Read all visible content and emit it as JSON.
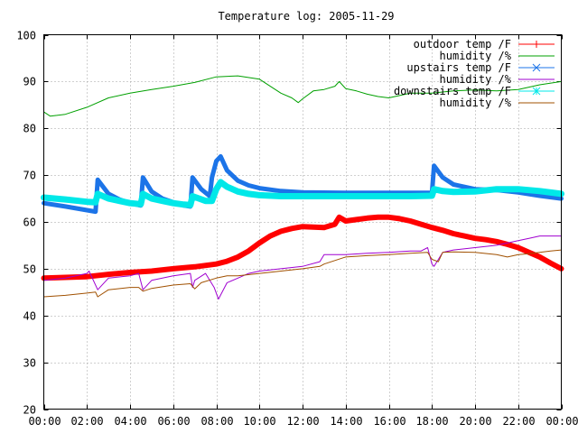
{
  "chart_data": {
    "type": "line",
    "title": "Temperature log: 2005-11-29",
    "xlabel": "",
    "ylabel": "",
    "xlim": [
      0,
      24
    ],
    "ylim": [
      20,
      100
    ],
    "grid": true,
    "legend_position": "top-right",
    "x_tick_labels": [
      "00:00",
      "02:00",
      "04:00",
      "06:00",
      "08:00",
      "10:00",
      "12:00",
      "14:00",
      "16:00",
      "18:00",
      "20:00",
      "22:00",
      "00:00"
    ],
    "y_tick_labels": [
      "20",
      "30",
      "40",
      "50",
      "60",
      "70",
      "80",
      "90",
      "100"
    ],
    "series": [
      {
        "name": "outdoor temp /F",
        "color": "#ff0000",
        "marker": "plus",
        "points": [
          [
            0,
            48
          ],
          [
            2,
            48.3
          ],
          [
            3,
            48.8
          ],
          [
            4,
            49.2
          ],
          [
            5,
            49.5
          ],
          [
            6,
            50
          ],
          [
            7,
            50.4
          ],
          [
            8,
            51
          ],
          [
            8.5,
            51.6
          ],
          [
            9,
            52.5
          ],
          [
            9.5,
            53.8
          ],
          [
            10,
            55.5
          ],
          [
            10.5,
            57
          ],
          [
            11,
            58
          ],
          [
            11.5,
            58.6
          ],
          [
            12,
            59
          ],
          [
            12.5,
            58.9
          ],
          [
            13,
            58.8
          ],
          [
            13.5,
            59.5
          ],
          [
            13.7,
            61
          ],
          [
            14,
            60.2
          ],
          [
            14.5,
            60.5
          ],
          [
            15,
            60.8
          ],
          [
            15.5,
            61
          ],
          [
            16,
            61
          ],
          [
            16.5,
            60.7
          ],
          [
            17,
            60.2
          ],
          [
            17.5,
            59.5
          ],
          [
            18,
            58.8
          ],
          [
            18.5,
            58.2
          ],
          [
            19,
            57.5
          ],
          [
            19.5,
            57
          ],
          [
            20,
            56.5
          ],
          [
            20.5,
            56.2
          ],
          [
            21,
            55.8
          ],
          [
            21.5,
            55.2
          ],
          [
            22,
            54.5
          ],
          [
            22.5,
            53.5
          ],
          [
            23,
            52.5
          ],
          [
            23.5,
            51.2
          ],
          [
            24,
            50
          ]
        ]
      },
      {
        "name": "humidity /%",
        "color": "#00a000",
        "marker": "none",
        "points": [
          [
            0,
            83.5
          ],
          [
            0.3,
            82.6
          ],
          [
            1,
            83
          ],
          [
            2,
            84.5
          ],
          [
            3,
            86.5
          ],
          [
            4,
            87.5
          ],
          [
            5,
            88.3
          ],
          [
            6,
            89
          ],
          [
            7,
            89.8
          ],
          [
            8,
            91
          ],
          [
            9,
            91.2
          ],
          [
            10,
            90.5
          ],
          [
            10.5,
            89
          ],
          [
            11,
            87.5
          ],
          [
            11.5,
            86.5
          ],
          [
            11.8,
            85.5
          ],
          [
            12,
            86.3
          ],
          [
            12.5,
            88
          ],
          [
            13,
            88.3
          ],
          [
            13.5,
            89
          ],
          [
            13.7,
            90
          ],
          [
            14,
            88.5
          ],
          [
            14.5,
            88
          ],
          [
            15,
            87.3
          ],
          [
            15.5,
            86.8
          ],
          [
            16,
            86.5
          ],
          [
            17,
            87.5
          ],
          [
            18,
            87.5
          ],
          [
            19,
            88
          ],
          [
            20,
            88.2
          ],
          [
            21,
            88
          ],
          [
            22,
            88.3
          ],
          [
            23,
            89.3
          ],
          [
            24,
            90
          ]
        ]
      },
      {
        "name": "upstairs temp /F",
        "color": "#1c74e8",
        "marker": "cross",
        "points": [
          [
            0,
            64
          ],
          [
            1,
            63.3
          ],
          [
            2,
            62.5
          ],
          [
            2.4,
            62.2
          ],
          [
            2.5,
            69
          ],
          [
            3,
            66
          ],
          [
            3.5,
            64.8
          ],
          [
            4,
            64
          ],
          [
            4.5,
            63.5
          ],
          [
            4.6,
            69.5
          ],
          [
            5,
            66.5
          ],
          [
            5.5,
            65
          ],
          [
            6,
            64.2
          ],
          [
            6.5,
            63.5
          ],
          [
            6.8,
            63.3
          ],
          [
            6.9,
            69.5
          ],
          [
            7.3,
            67
          ],
          [
            7.7,
            65.5
          ],
          [
            7.8,
            69.5
          ],
          [
            8,
            73
          ],
          [
            8.2,
            74
          ],
          [
            8.5,
            71
          ],
          [
            9,
            68.8
          ],
          [
            9.5,
            67.8
          ],
          [
            10,
            67.2
          ],
          [
            11,
            66.6
          ],
          [
            12,
            66.3
          ],
          [
            14,
            66.2
          ],
          [
            16,
            66.2
          ],
          [
            17,
            66.2
          ],
          [
            18,
            66.2
          ],
          [
            18.1,
            72
          ],
          [
            18.5,
            69.5
          ],
          [
            19,
            68
          ],
          [
            20,
            67
          ],
          [
            21,
            66.8
          ],
          [
            22,
            66.3
          ],
          [
            23,
            65.6
          ],
          [
            24,
            65
          ]
        ]
      },
      {
        "name": "humidity /%",
        "color": "#a000d0",
        "marker": "none",
        "points": [
          [
            0,
            47.5
          ],
          [
            1,
            48
          ],
          [
            2,
            49
          ],
          [
            2.1,
            49.5
          ],
          [
            2.5,
            45.5
          ],
          [
            3,
            48
          ],
          [
            4,
            48.5
          ],
          [
            4.4,
            49
          ],
          [
            4.6,
            45.5
          ],
          [
            5,
            47.5
          ],
          [
            6,
            48.5
          ],
          [
            6.8,
            49
          ],
          [
            6.9,
            46
          ],
          [
            7,
            47.5
          ],
          [
            7.5,
            49
          ],
          [
            7.9,
            46
          ],
          [
            8.1,
            43.5
          ],
          [
            8.5,
            47
          ],
          [
            9,
            48
          ],
          [
            9.5,
            49
          ],
          [
            10,
            49.5
          ],
          [
            11,
            50
          ],
          [
            12,
            50.5
          ],
          [
            12.8,
            51.5
          ],
          [
            13,
            53
          ],
          [
            14,
            53
          ],
          [
            15,
            53.3
          ],
          [
            16,
            53.5
          ],
          [
            17,
            53.8
          ],
          [
            17.5,
            53.8
          ],
          [
            17.8,
            54.5
          ],
          [
            18,
            51
          ],
          [
            18.1,
            50.5
          ],
          [
            18.5,
            53.5
          ],
          [
            19,
            54
          ],
          [
            20,
            54.5
          ],
          [
            21,
            55
          ],
          [
            22,
            56
          ],
          [
            22.5,
            56.5
          ],
          [
            23,
            57
          ],
          [
            24,
            57
          ]
        ]
      },
      {
        "name": "downstairs temp /F",
        "color": "#00e8e8",
        "marker": "star",
        "points": [
          [
            0,
            65.2
          ],
          [
            1,
            64.8
          ],
          [
            2,
            64.3
          ],
          [
            2.4,
            64.2
          ],
          [
            2.5,
            66
          ],
          [
            3,
            65
          ],
          [
            3.5,
            64.5
          ],
          [
            4,
            64
          ],
          [
            4.5,
            63.8
          ],
          [
            4.6,
            66
          ],
          [
            5,
            65
          ],
          [
            5.5,
            64.5
          ],
          [
            6,
            64
          ],
          [
            6.5,
            63.7
          ],
          [
            6.8,
            63.6
          ],
          [
            6.9,
            65.5
          ],
          [
            7.5,
            64.5
          ],
          [
            7.8,
            64.5
          ],
          [
            8,
            67
          ],
          [
            8.2,
            68.5
          ],
          [
            8.5,
            67.5
          ],
          [
            9,
            66.5
          ],
          [
            9.5,
            66
          ],
          [
            10,
            65.7
          ],
          [
            11,
            65.5
          ],
          [
            12,
            65.5
          ],
          [
            14,
            65.5
          ],
          [
            16,
            65.5
          ],
          [
            17,
            65.5
          ],
          [
            18,
            65.6
          ],
          [
            18.1,
            67
          ],
          [
            18.5,
            66.6
          ],
          [
            19,
            66.4
          ],
          [
            20,
            66.5
          ],
          [
            21,
            67
          ],
          [
            22,
            67
          ],
          [
            23,
            66.6
          ],
          [
            24,
            66
          ]
        ]
      },
      {
        "name": "humidity /%",
        "color": "#a05000",
        "marker": "none",
        "points": [
          [
            0,
            44
          ],
          [
            1,
            44.3
          ],
          [
            2,
            44.8
          ],
          [
            2.4,
            45
          ],
          [
            2.5,
            44
          ],
          [
            3,
            45.5
          ],
          [
            4,
            46
          ],
          [
            4.4,
            46
          ],
          [
            4.6,
            45.2
          ],
          [
            5,
            45.8
          ],
          [
            6,
            46.5
          ],
          [
            6.8,
            46.8
          ],
          [
            7,
            45.7
          ],
          [
            7.3,
            47
          ],
          [
            8,
            48
          ],
          [
            8.5,
            48.5
          ],
          [
            9,
            48.5
          ],
          [
            10,
            49
          ],
          [
            11,
            49.5
          ],
          [
            12,
            50
          ],
          [
            12.8,
            50.5
          ],
          [
            13,
            51
          ],
          [
            14,
            52.5
          ],
          [
            15,
            52.8
          ],
          [
            16,
            53
          ],
          [
            17,
            53.3
          ],
          [
            17.8,
            53.5
          ],
          [
            18,
            52
          ],
          [
            18.3,
            51.5
          ],
          [
            18.5,
            53.5
          ],
          [
            19,
            53.6
          ],
          [
            20,
            53.5
          ],
          [
            21,
            53
          ],
          [
            21.5,
            52.5
          ],
          [
            22,
            53
          ],
          [
            22.5,
            53.2
          ],
          [
            23,
            53.5
          ],
          [
            23.5,
            53.8
          ],
          [
            24,
            54
          ]
        ]
      }
    ]
  }
}
